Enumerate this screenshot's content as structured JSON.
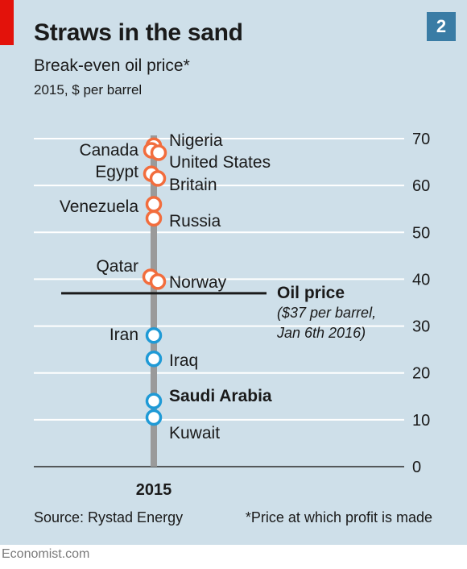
{
  "header": {
    "badge": "2"
  },
  "source": "Source: Rystad Energy",
  "footnote": "*Price at which profit is made",
  "publisher": "Economist.com",
  "colors": {
    "panel_bg": "#cedfe9",
    "above_price": "#f26d3d",
    "below_price": "#1f9ad6",
    "axis_bar": "#9a9a9a",
    "brand_red": "#e3120b",
    "badge": "#3a7ca5"
  },
  "chart_data": {
    "type": "scatter",
    "title": "Straws in the sand",
    "subtitle": "Break-even oil price*",
    "unit_label": "2015, $ per barrel",
    "x_categories": [
      "2015"
    ],
    "ylim": [
      0,
      70
    ],
    "y_ticks": [
      0,
      10,
      20,
      30,
      40,
      50,
      60,
      70
    ],
    "grid": true,
    "points": [
      {
        "name": "Nigeria",
        "value": 68.5,
        "group": "above"
      },
      {
        "name": "Canada",
        "value": 67.5,
        "group": "above"
      },
      {
        "name": "United States",
        "value": 67,
        "group": "above"
      },
      {
        "name": "Egypt",
        "value": 62.5,
        "group": "above"
      },
      {
        "name": "Britain",
        "value": 61.5,
        "group": "above"
      },
      {
        "name": "Venezuela",
        "value": 56,
        "group": "above"
      },
      {
        "name": "Russia",
        "value": 53,
        "group": "above"
      },
      {
        "name": "Qatar",
        "value": 40.5,
        "group": "above"
      },
      {
        "name": "Norway",
        "value": 39.5,
        "group": "above"
      },
      {
        "name": "Iran",
        "value": 28,
        "group": "below"
      },
      {
        "name": "Iraq",
        "value": 23,
        "group": "below"
      },
      {
        "name": "Saudi Arabia",
        "value": 14,
        "group": "below",
        "bold": true
      },
      {
        "name": "Kuwait",
        "value": 10.5,
        "group": "below"
      }
    ],
    "reference_line": {
      "value": 37,
      "label": "Oil price",
      "note_line1": "($37 per barrel,",
      "note_line2": "Jan 6th 2016)"
    }
  }
}
